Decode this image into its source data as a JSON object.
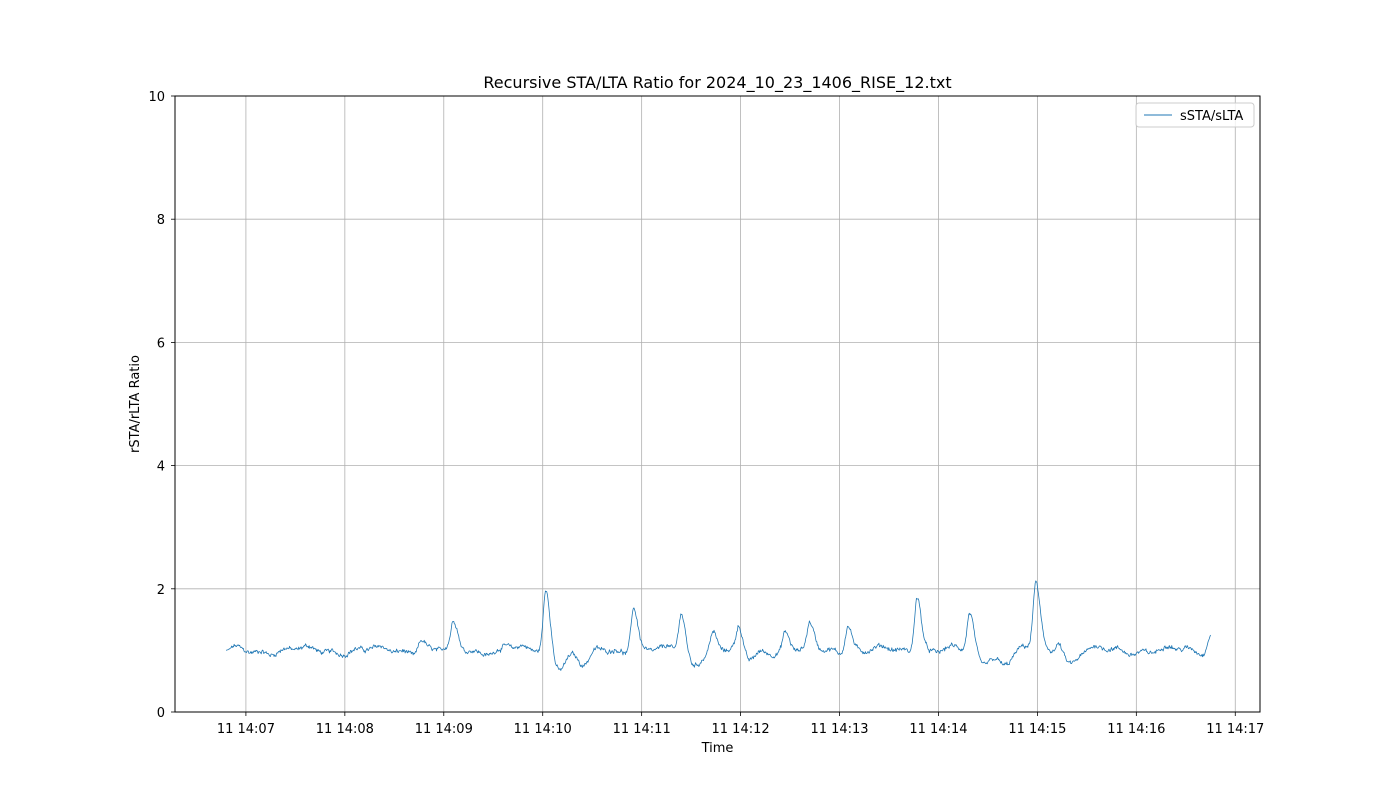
{
  "chart_data": {
    "type": "line",
    "title": "Recursive STA/LTA Ratio for 2024_10_23_1406_RISE_12.txt",
    "xlabel": "Time",
    "ylabel": "rSTA/rLTA Ratio",
    "ylim": [
      0,
      10
    ],
    "xlim": [
      "14:06:17",
      "14:17:15"
    ],
    "yticks": [
      "0",
      "2",
      "4",
      "6",
      "8",
      "10"
    ],
    "xticks": [
      {
        "t": "14:07:00",
        "label": "11 14:07"
      },
      {
        "t": "14:08:00",
        "label": "11 14:08"
      },
      {
        "t": "14:09:00",
        "label": "11 14:09"
      },
      {
        "t": "14:10:00",
        "label": "11 14:10"
      },
      {
        "t": "14:11:00",
        "label": "11 14:11"
      },
      {
        "t": "14:12:00",
        "label": "11 14:12"
      },
      {
        "t": "14:13:00",
        "label": "11 14:13"
      },
      {
        "t": "14:14:00",
        "label": "11 14:14"
      },
      {
        "t": "14:15:00",
        "label": "11 14:15"
      },
      {
        "t": "14:16:00",
        "label": "11 14:16"
      },
      {
        "t": "14:17:00",
        "label": "11 14:17"
      }
    ],
    "grid": true,
    "legend_position": "top-right",
    "series": [
      {
        "name": "sSTA/sLTA",
        "color": "#1f77b4",
        "start_time": "14:06:48",
        "end_time": "14:16:45",
        "baseline": 1.0,
        "noise": 0.06,
        "start_value": 1.0,
        "end_value": 1.25,
        "events": [
          {
            "t": "14:08:46",
            "peak": 1.2
          },
          {
            "t": "14:09:06",
            "peak": 1.42
          },
          {
            "t": "14:09:38",
            "peak": 1.08
          },
          {
            "t": "14:10:02",
            "peak": 2.02
          },
          {
            "t": "14:10:19",
            "peak": 1.02
          },
          {
            "t": "14:10:55",
            "peak": 1.75
          },
          {
            "t": "14:11:24",
            "peak": 1.65
          },
          {
            "t": "14:11:43",
            "peak": 1.3
          },
          {
            "t": "14:11:59",
            "peak": 1.4
          },
          {
            "t": "14:12:27",
            "peak": 1.3
          },
          {
            "t": "14:12:42",
            "peak": 1.38
          },
          {
            "t": "14:13:05",
            "peak": 1.45
          },
          {
            "t": "14:13:47",
            "peak": 1.93
          },
          {
            "t": "14:14:19",
            "peak": 1.63
          },
          {
            "t": "14:14:59",
            "peak": 2.1
          },
          {
            "t": "14:15:13",
            "peak": 1.22
          }
        ],
        "dips": [
          {
            "t": "14:10:10",
            "value": 0.75
          },
          {
            "t": "14:10:25",
            "value": 0.75
          },
          {
            "t": "14:11:31",
            "value": 0.78
          },
          {
            "t": "14:12:04",
            "value": 0.82
          },
          {
            "t": "14:14:26",
            "value": 0.82
          },
          {
            "t": "14:14:40",
            "value": 0.78
          },
          {
            "t": "14:15:20",
            "value": 0.8
          }
        ]
      }
    ]
  }
}
